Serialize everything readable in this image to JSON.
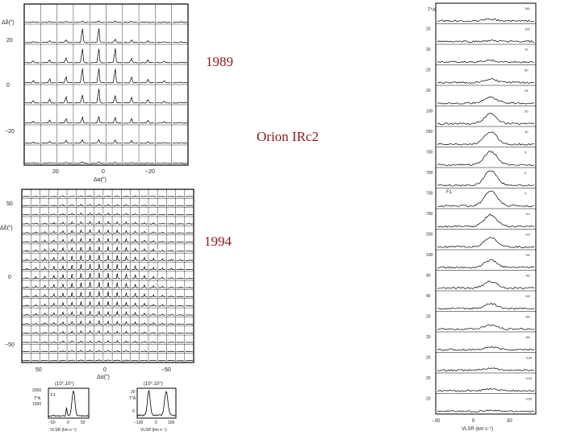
{
  "slide": {
    "label_1989": "1989",
    "label_1994": "1994",
    "label_source": "Orion IRc2",
    "accent_color": "#8b1a1a"
  },
  "chart_data": [
    {
      "type": "grid-spectra",
      "name": "map-1989",
      "rows": 8,
      "cols": 10,
      "ylabel": "Δδ(\")",
      "xlabel": "Δα(\")",
      "y_ticks": [
        "20",
        "0",
        "−20"
      ],
      "x_ticks": [
        "20",
        "0",
        "−20"
      ],
      "peak_cells": [
        [
          1,
          3
        ],
        [
          1,
          4
        ],
        [
          2,
          3
        ],
        [
          2,
          4
        ],
        [
          2,
          5
        ],
        [
          3,
          3
        ],
        [
          3,
          4
        ],
        [
          3,
          5
        ],
        [
          4,
          4
        ]
      ]
    },
    {
      "type": "grid-spectra",
      "name": "map-1994",
      "rows": 19,
      "cols": 19,
      "ylabel": "Δδ(\")",
      "xlabel": "Δα(\")",
      "y_ticks": [
        "50",
        "0",
        "−50"
      ],
      "x_ticks": [
        "50",
        "0",
        "−50"
      ]
    },
    {
      "type": "line",
      "name": "inset-spectrum-left",
      "header": "(10°,10°)",
      "ylabel": "T*A",
      "y_ticks": [
        "2000",
        "1000"
      ],
      "xlabel": "VLSR (km s⁻¹)",
      "x_ticks": [
        "−50",
        "0",
        "50"
      ],
      "annotation": "F1"
    },
    {
      "type": "line",
      "name": "inset-spectrum-right",
      "header": "(10°,10°)",
      "ylabel": "T*A",
      "y_ticks": [
        "20",
        "0"
      ],
      "xlabel": "VLSR (km s⁻¹)",
      "x_ticks": [
        "−100",
        "0",
        "100"
      ]
    },
    {
      "type": "line",
      "name": "stacked-spectra",
      "ylabel": "T*A",
      "xlabel": "VLSR (km s⁻¹)",
      "x_ticks": [
        "−30",
        "0",
        "30"
      ],
      "annotation": "F1",
      "panels": [
        {
          "scale": "",
          "offset": "150",
          "peak": 0.1
        },
        {
          "scale": "20",
          "offset": "100",
          "peak": 0.05
        },
        {
          "scale": "20",
          "offset": "75",
          "peak": 0.1
        },
        {
          "scale": "20",
          "offset": "50",
          "peak": 0.2
        },
        {
          "scale": "20",
          "offset": "25",
          "peak": 0.35
        },
        {
          "scale": "100",
          "offset": "20",
          "peak": 0.6
        },
        {
          "scale": "250",
          "offset": "10",
          "peak": 0.75
        },
        {
          "scale": "700",
          "offset": "5",
          "peak": 0.8
        },
        {
          "scale": "700",
          "offset": "0",
          "peak": 0.9
        },
        {
          "scale": "700",
          "offset": "0",
          "peak": 0.9
        },
        {
          "scale": "700",
          "offset": "−10",
          "peak": 0.7
        },
        {
          "scale": "200",
          "offset": "−20",
          "peak": 0.6
        },
        {
          "scale": "100",
          "offset": "−30",
          "peak": 0.45
        },
        {
          "scale": "40",
          "offset": "−40",
          "peak": 0.4
        },
        {
          "scale": "40",
          "offset": "−50",
          "peak": 0.3
        },
        {
          "scale": "20",
          "offset": "−60",
          "peak": 0.25
        },
        {
          "scale": "20",
          "offset": "−80",
          "peak": 0.15
        },
        {
          "scale": "20",
          "offset": "−100",
          "peak": 0.12
        },
        {
          "scale": "20",
          "offset": "−120",
          "peak": 0.1
        },
        {
          "scale": "20",
          "offset": "−150",
          "peak": 0.05
        }
      ]
    }
  ]
}
